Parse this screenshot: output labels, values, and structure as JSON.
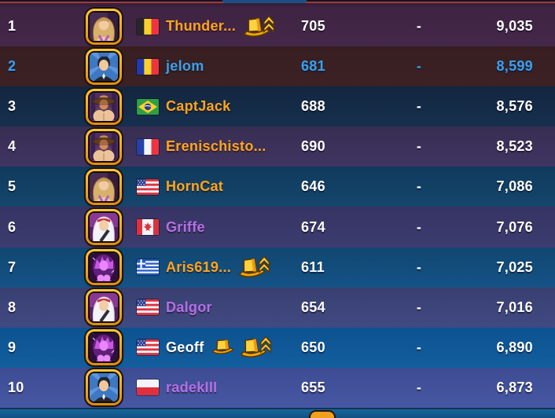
{
  "panel": {
    "title_hidden": "",
    "type": "leaderboard"
  },
  "colors": {
    "orange": "#FFA51F",
    "blue": "#38A1F2",
    "purple": "#B46FE6",
    "white": "#FFFFFF",
    "frame_gold": "#F5A623",
    "red_line": "#9E3A3C",
    "tab_blue": "#1D4E8A",
    "footer_blue": "#19679F",
    "footer_arc_orange": "#F0A01C"
  },
  "rows": [
    {
      "rank": "1",
      "avatar": "blonde",
      "country": "belgium",
      "name": "Thunder...",
      "name_color": "orange",
      "icons": [
        "promotion-hat"
      ],
      "value": "705",
      "dash": "-",
      "score": "9,035",
      "bg_top": "#3E2342",
      "bg_bottom": "#45284A",
      "highlight": false
    },
    {
      "rank": "2",
      "avatar": "suit-man",
      "country": "romania",
      "name": "jelom",
      "name_color": "blue",
      "icons": [],
      "value": "681",
      "dash": "-",
      "score": "8,599",
      "bg_top": "#371E20",
      "bg_bottom": "#3C2224",
      "highlight": true
    },
    {
      "rank": "3",
      "avatar": "cowboy",
      "country": "brazil",
      "name": "CaptJack",
      "name_color": "orange",
      "icons": [],
      "value": "688",
      "dash": "-",
      "score": "8,576",
      "bg_top": "#13263F",
      "bg_bottom": "#16304F",
      "highlight": false
    },
    {
      "rank": "4",
      "avatar": "cowboy",
      "country": "france",
      "name": "Erenischisto...",
      "name_color": "orange",
      "icons": [],
      "value": "690",
      "dash": "-",
      "score": "8,523",
      "bg_top": "#382D52",
      "bg_bottom": "#403561",
      "highlight": false
    },
    {
      "rank": "5",
      "avatar": "blonde",
      "country": "usa",
      "name": "HornCat",
      "name_color": "orange",
      "icons": [],
      "value": "646",
      "dash": "-",
      "score": "7,086",
      "bg_top": "#0F3A5C",
      "bg_bottom": "#15466E",
      "highlight": false
    },
    {
      "rank": "6",
      "avatar": "white-hair",
      "country": "canada",
      "name": "Griffe",
      "name_color": "purple",
      "icons": [],
      "value": "674",
      "dash": "-",
      "score": "7,076",
      "bg_top": "#363463",
      "bg_bottom": "#3D3C70",
      "highlight": false
    },
    {
      "rank": "7",
      "avatar": "purple-glow",
      "country": "greece",
      "name": "Aris619...",
      "name_color": "orange",
      "icons": [
        "promotion-hat"
      ],
      "value": "611",
      "dash": "-",
      "score": "7,025",
      "bg_top": "#0F4770",
      "bg_bottom": "#155287",
      "highlight": false
    },
    {
      "rank": "8",
      "avatar": "white-hair",
      "country": "usa",
      "name": "Dalgor",
      "name_color": "purple",
      "icons": [],
      "value": "654",
      "dash": "-",
      "score": "7,016",
      "bg_top": "#383F71",
      "bg_bottom": "#414A82",
      "highlight": false
    },
    {
      "rank": "9",
      "avatar": "purple-glow",
      "country": "usa",
      "name": "Geoff",
      "name_color": "white",
      "icons": [
        "top-hat",
        "promotion-hat"
      ],
      "value": "650",
      "dash": "-",
      "score": "6,890",
      "bg_top": "#0D5290",
      "bg_bottom": "#125E9E",
      "highlight": false
    },
    {
      "rank": "10",
      "avatar": "suit-man",
      "country": "poland",
      "name": "radekIII",
      "name_color": "purple",
      "icons": [],
      "value": "655",
      "dash": "-",
      "score": "6,873",
      "bg_top": "#3D4C92",
      "bg_bottom": "#4757A3",
      "highlight": false
    }
  ]
}
